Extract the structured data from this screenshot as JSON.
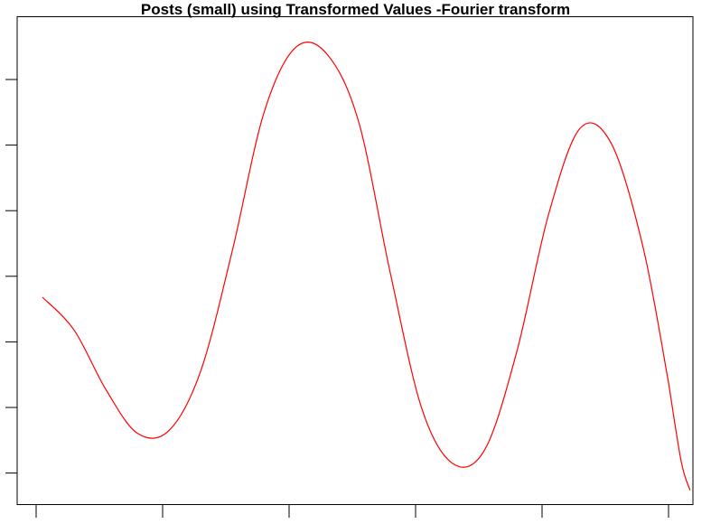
{
  "chart_data": {
    "type": "line",
    "title": "Posts (small) using Transformed Values -Fourier transform",
    "xlabel": "",
    "ylabel": "",
    "x_tick_count": 6,
    "y_tick_count": 7,
    "tick_labels_visible": false,
    "grid": false,
    "legend": "none",
    "ylim": [
      0,
      7.4
    ],
    "xlim": [
      0,
      5.2
    ],
    "series": [
      {
        "color": "#ff0000",
        "x": [
          0.05,
          0.3,
          0.55,
          0.8,
          1.05,
          1.3,
          1.55,
          1.8,
          2.05,
          2.3,
          2.55,
          2.8,
          3.05,
          3.3,
          3.55,
          3.8,
          4.05,
          4.3,
          4.55,
          4.8,
          5.0
        ],
        "y": [
          3.15,
          2.65,
          1.75,
          1.08,
          1.12,
          2.02,
          3.85,
          5.95,
          6.95,
          6.85,
          5.82,
          3.52,
          1.45,
          0.61,
          0.84,
          2.32,
          4.4,
          5.72,
          5.48,
          3.9,
          1.85
        ]
      },
      {
        "color": "#ff0000",
        "x": [
          5.0,
          5.1,
          5.17
        ],
        "y": [
          1.85,
          0.65,
          0.21
        ]
      }
    ]
  }
}
